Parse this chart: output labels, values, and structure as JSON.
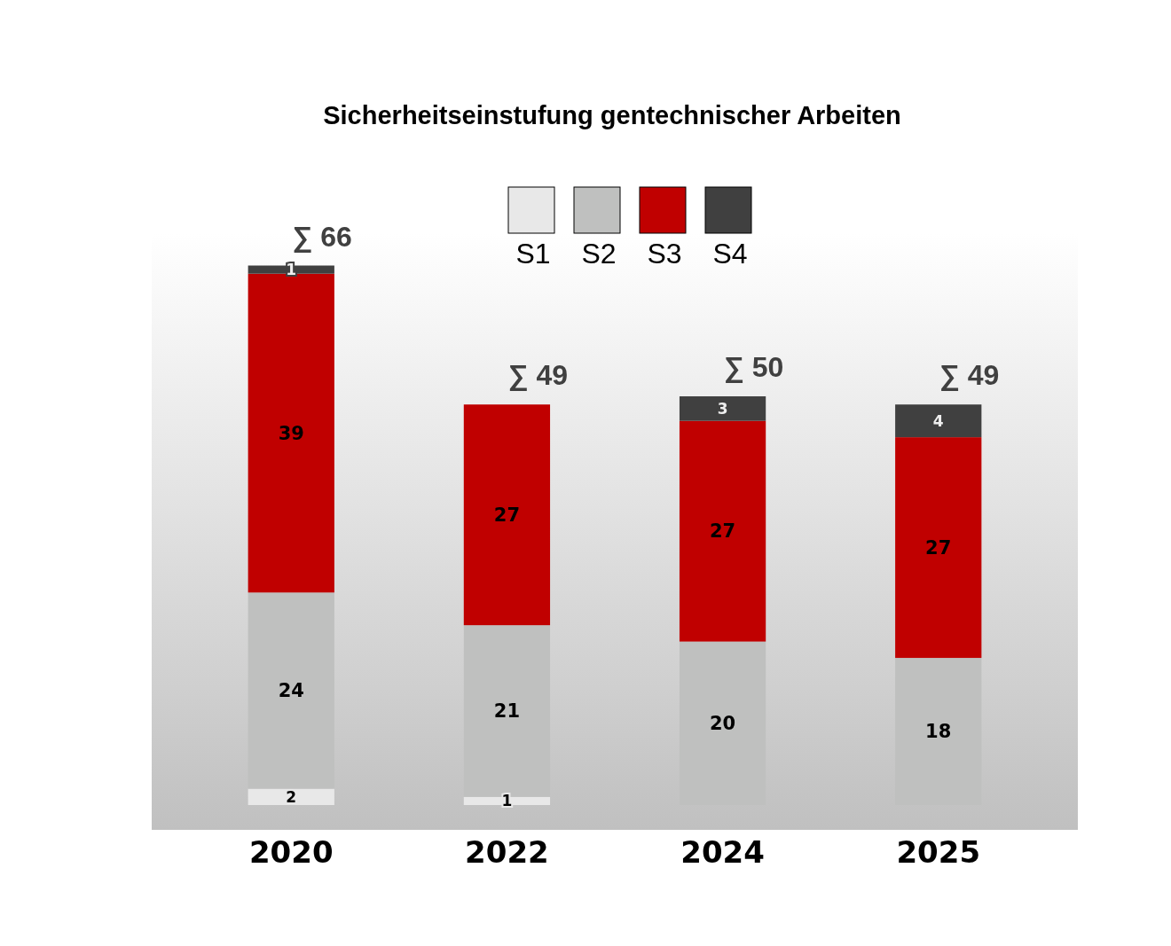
{
  "chart_data": {
    "type": "bar",
    "stacked": true,
    "title": "Sicherheitseinstufung gentechnischer Arbeiten",
    "categories": [
      "2020",
      "2022",
      "2024",
      "2025"
    ],
    "series": [
      {
        "name": "S1",
        "color": "#e8e8e8",
        "values": [
          2,
          1,
          null,
          null
        ]
      },
      {
        "name": "S2",
        "color": "#bfc0bf",
        "values": [
          24,
          21,
          20,
          18
        ]
      },
      {
        "name": "S3",
        "color": "#c00000",
        "values": [
          39,
          27,
          27,
          27
        ]
      },
      {
        "name": "S4",
        "color": "#404040",
        "values": [
          1,
          null,
          3,
          4
        ]
      }
    ],
    "data_labels": true,
    "totals": [
      "∑ 66",
      "∑ 49",
      "∑ 50",
      "∑ 49"
    ],
    "legend": "top",
    "grid": false
  }
}
